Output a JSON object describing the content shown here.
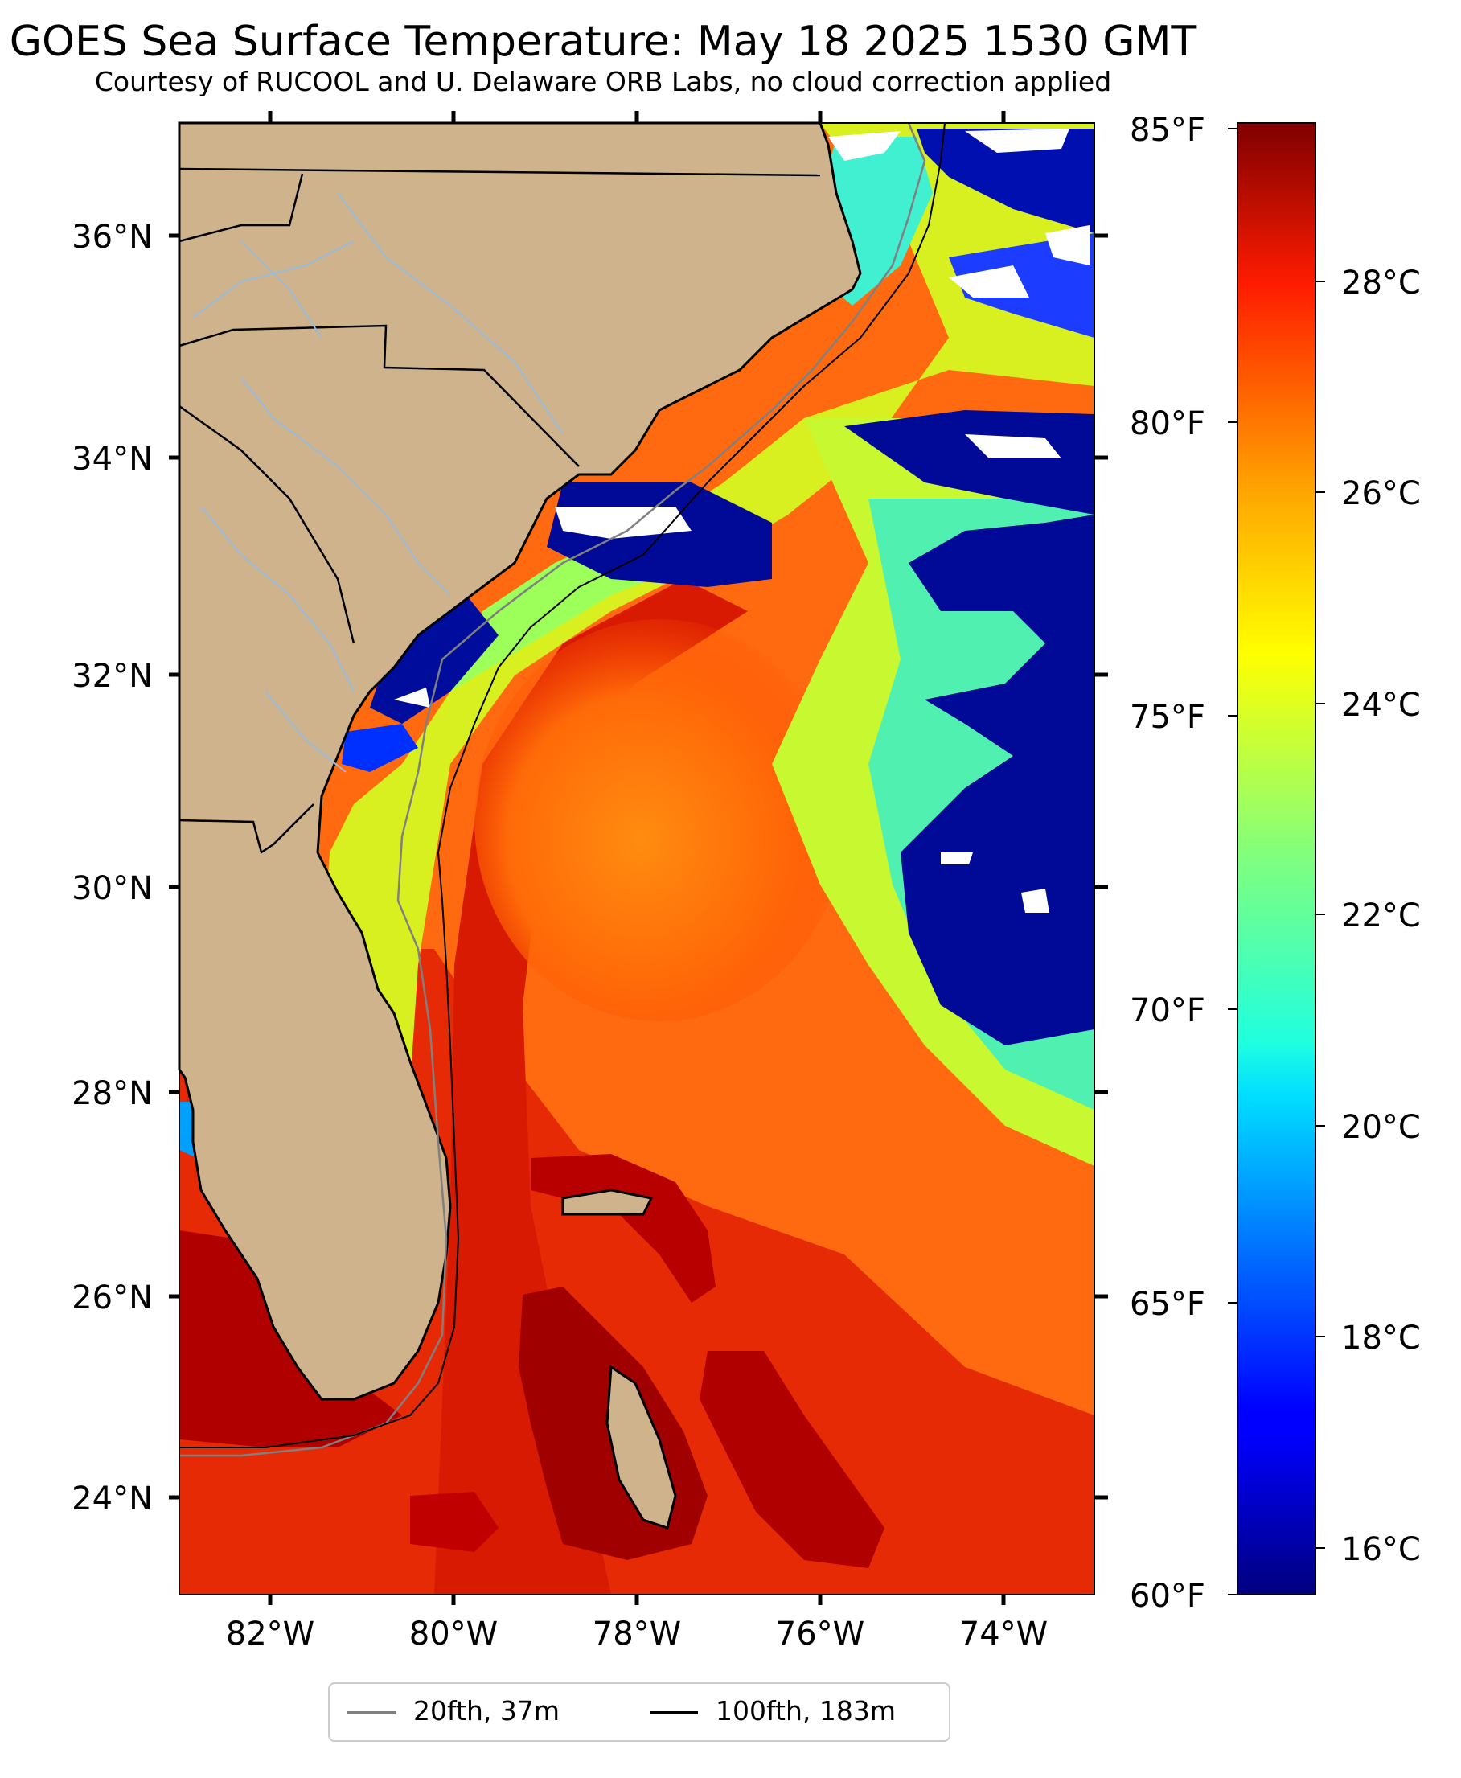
{
  "header": {
    "title": "GOES Sea Surface Temperature: May 18 2025 1530 GMT",
    "subtitle": "Courtesy of RUCOOL and U. Delaware ORB Labs, no cloud correction applied"
  },
  "map": {
    "lat_labels": [
      "36°N",
      "34°N",
      "32°N",
      "30°N",
      "28°N",
      "26°N",
      "24°N"
    ],
    "lon_labels": [
      "82°W",
      "80°W",
      "78°W",
      "76°W",
      "74°W"
    ],
    "extent": {
      "lon": [
        -83.0,
        -73.0
      ],
      "lat": [
        23.1,
        37.1
      ]
    },
    "colors": {
      "land": "#cfb38c",
      "border": "#000000",
      "river": "#99bbdd",
      "cloud": "#ffffff"
    }
  },
  "colorbar": {
    "fahrenheit_labels": [
      "85°F",
      "80°F",
      "75°F",
      "70°F",
      "65°F",
      "60°F"
    ],
    "celsius_labels": [
      "28°C",
      "26°C",
      "24°C",
      "22°C",
      "20°C",
      "18°C",
      "16°C"
    ],
    "colormap": "jet"
  },
  "legend": {
    "items": [
      {
        "label": "20fth, 37m",
        "color": "#808080"
      },
      {
        "label": "100fth, 183m",
        "color": "#000000"
      }
    ]
  }
}
